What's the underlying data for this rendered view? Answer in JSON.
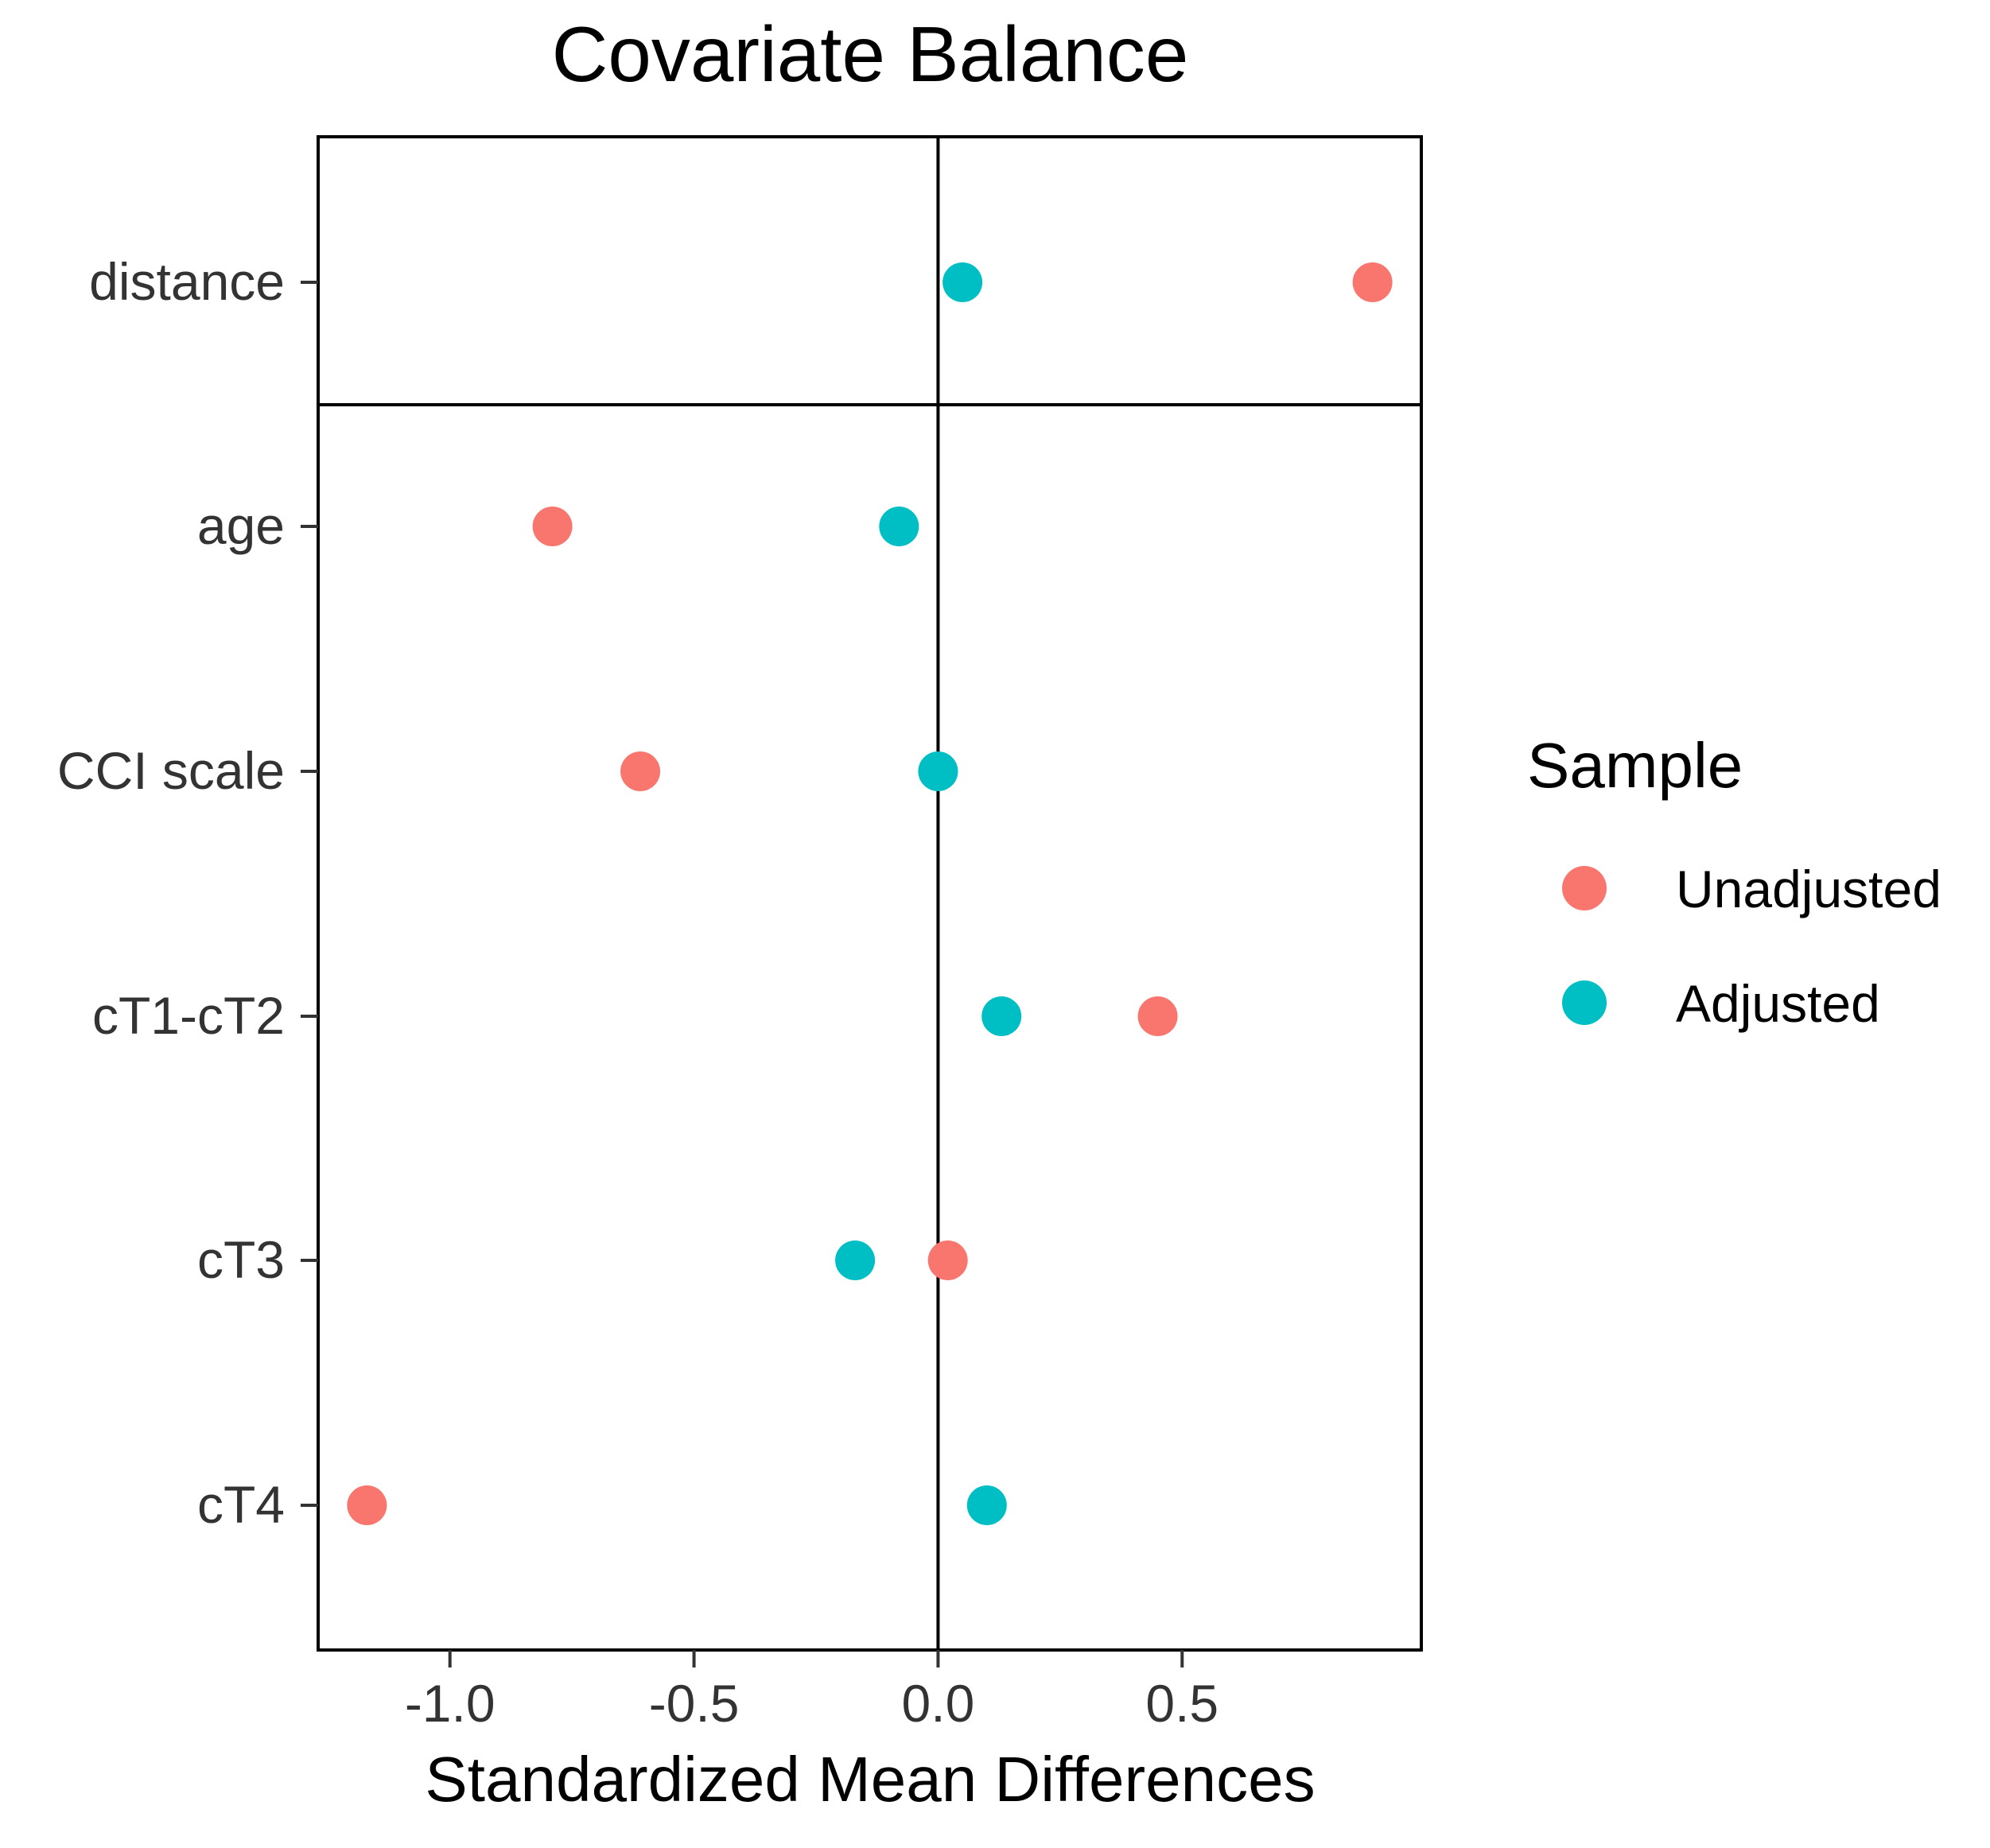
{
  "chart_data": {
    "type": "scatter",
    "title": "Covariate Balance",
    "xlabel": "Standardized Mean Differences",
    "ylabel": "",
    "xlim": [
      -1.27,
      0.99
    ],
    "x_ticks": [
      -1.0,
      -0.5,
      0.0,
      0.5
    ],
    "x_tick_labels": [
      "-1.0",
      "-0.5",
      "0.0",
      "0.5"
    ],
    "categories": [
      "distance",
      "age",
      "CCI scale",
      "cT1-cT2",
      "cT3",
      "cT4"
    ],
    "reference_line": 0,
    "grid": false,
    "legend_title": "Sample",
    "legend_position": "right",
    "series": [
      {
        "name": "Unadjusted",
        "color": "#F8766D",
        "values": [
          0.89,
          -0.79,
          -0.61,
          0.45,
          0.02,
          -1.17
        ]
      },
      {
        "name": "Adjusted",
        "color": "#00BFC4",
        "values": [
          0.05,
          -0.08,
          0.0,
          0.13,
          -0.17,
          0.1
        ]
      }
    ]
  }
}
